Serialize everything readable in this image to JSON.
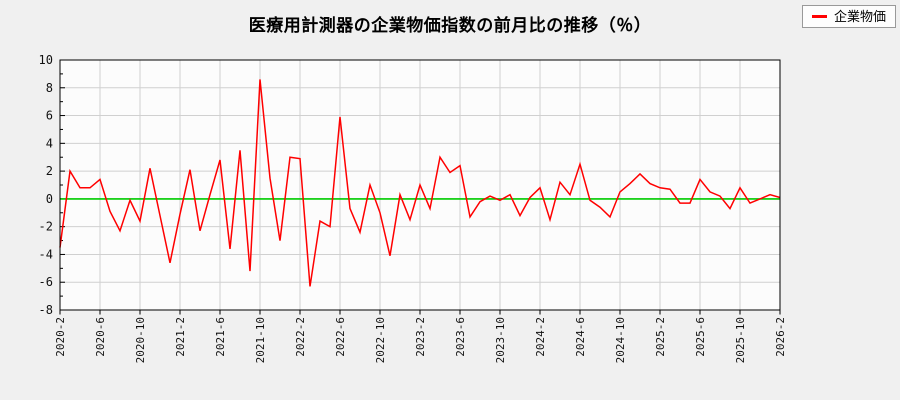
{
  "title": "医療用計測器の企業物価指数の前月比の推移（％）",
  "colors": {
    "series": "#ff0000",
    "zero_line": "#00cc00",
    "grid": "#d0d0d0",
    "axis": "#000000",
    "plot_bg": "#fcfcfc",
    "page_bg": "#f0f0f0",
    "legend_bg": "#fdfdfd",
    "legend_border": "#999999",
    "tick_text": "#111111"
  },
  "chart_data": {
    "type": "line",
    "title": "医療用計測器の企業物価指数の前月比の推移（％）",
    "legend": [
      "企業物価"
    ],
    "legend_position": "top-right",
    "grid": true,
    "zero_line": true,
    "ylim": [
      -8,
      10
    ],
    "y_ticks": [
      10,
      8,
      6,
      4,
      2,
      0,
      -2,
      -4,
      -6,
      -8
    ],
    "x_tick_interval": 4,
    "x_tick_labels": [
      "2020-2",
      "2020-6",
      "2020-10",
      "2021-2",
      "2021-6",
      "2021-10",
      "2022-2",
      "2022-6",
      "2022-10",
      "2023-2",
      "2023-6",
      "2023-10",
      "2024-2",
      "2024-6",
      "2024-10",
      "2025-2",
      "2025-6",
      "2025-10",
      "2026-2"
    ],
    "months": [
      "2020-02",
      "2020-03",
      "2020-04",
      "2020-05",
      "2020-06",
      "2020-07",
      "2020-08",
      "2020-09",
      "2020-10",
      "2020-11",
      "2020-12",
      "2021-01",
      "2021-02",
      "2021-03",
      "2021-04",
      "2021-05",
      "2021-06",
      "2021-07",
      "2021-08",
      "2021-09",
      "2021-10",
      "2021-11",
      "2021-12",
      "2022-01",
      "2022-02",
      "2022-03",
      "2022-04",
      "2022-05",
      "2022-06",
      "2022-07",
      "2022-08",
      "2022-09",
      "2022-10",
      "2022-11",
      "2022-12",
      "2023-01",
      "2023-02",
      "2023-03",
      "2023-04",
      "2023-05",
      "2023-06",
      "2023-07",
      "2023-08",
      "2023-09",
      "2023-10",
      "2023-11",
      "2023-12",
      "2024-01",
      "2024-02",
      "2024-03",
      "2024-04",
      "2024-05",
      "2024-06",
      "2024-07",
      "2024-08",
      "2024-09",
      "2024-10",
      "2024-11",
      "2024-12",
      "2025-01",
      "2025-02",
      "2025-03",
      "2025-04",
      "2025-05",
      "2025-06",
      "2025-07",
      "2025-08",
      "2025-09",
      "2025-10",
      "2025-11",
      "2025-12",
      "2026-01",
      "2026-02"
    ],
    "values": [
      -3.5,
      2.0,
      0.8,
      0.8,
      1.4,
      -0.9,
      -2.3,
      -0.1,
      -1.6,
      2.2,
      -1.2,
      -4.6,
      -1.1,
      2.1,
      -2.3,
      0.3,
      2.8,
      -3.6,
      3.5,
      -5.2,
      8.6,
      1.5,
      -3.0,
      3.0,
      2.9,
      -6.3,
      -1.6,
      -2.0,
      5.9,
      -0.7,
      -2.4,
      1.0,
      -1.0,
      -4.1,
      0.3,
      -1.5,
      1.0,
      -0.7,
      3.0,
      1.9,
      2.4,
      -1.3,
      -0.2,
      0.2,
      -0.1,
      0.3,
      -1.2,
      0.1,
      0.8,
      -1.5,
      1.2,
      0.3,
      2.5,
      -0.1,
      -0.6,
      -1.3,
      0.5,
      1.1,
      1.8,
      1.1,
      0.8,
      0.7,
      -0.3,
      -0.3,
      1.4,
      0.5,
      0.2,
      -0.7,
      0.8,
      -0.3,
      0.0,
      0.3,
      0.1
    ]
  }
}
